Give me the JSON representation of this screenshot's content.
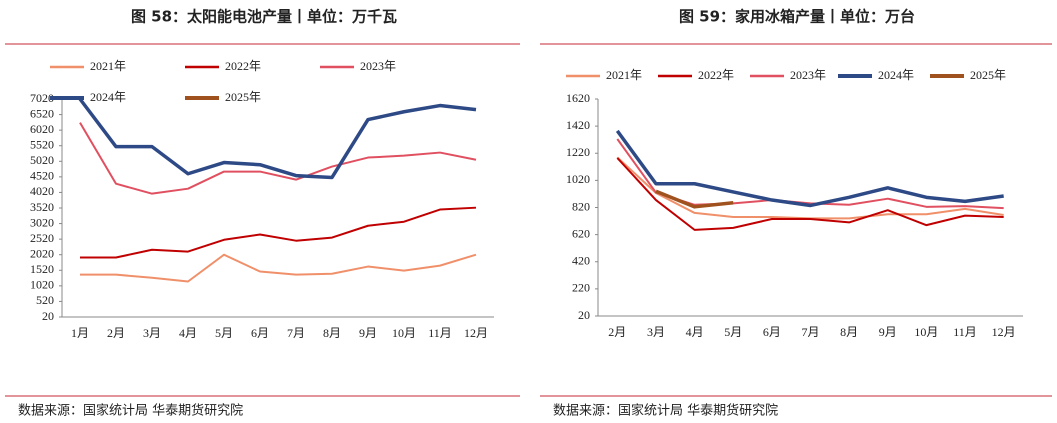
{
  "chart_data": [
    {
      "type": "line",
      "title": "图 58：太阳能电池产量丨单位：万千瓦",
      "categories": [
        "1月",
        "2月",
        "3月",
        "4月",
        "5月",
        "6月",
        "7月",
        "8月",
        "9月",
        "10月",
        "11月",
        "12月"
      ],
      "series": [
        {
          "name": "2021年",
          "color": "#f0906a",
          "values": [
            1380,
            1380,
            1280,
            1160,
            2020,
            1480,
            1380,
            1410,
            1640,
            1510,
            1670,
            2020
          ]
        },
        {
          "name": "2022年",
          "color": "#c00000",
          "values": [
            1930,
            1930,
            2180,
            2120,
            2500,
            2670,
            2470,
            2570,
            2950,
            3080,
            3470,
            3530
          ]
        },
        {
          "name": "2023年",
          "color": "#e05060",
          "values": [
            6260,
            4300,
            3980,
            4140,
            4690,
            4690,
            4430,
            4850,
            5140,
            5200,
            5300,
            5070
          ]
        },
        {
          "name": "2024年",
          "color": "#2e4a86",
          "values": [
            7020,
            5490,
            5490,
            4620,
            4980,
            4910,
            4560,
            4500,
            6360,
            6610,
            6810,
            6680
          ]
        },
        {
          "name": "2025年",
          "color": "#a0521e",
          "values": [
            null,
            null,
            null,
            null,
            null,
            null,
            null,
            null,
            null,
            null,
            null,
            null
          ]
        }
      ],
      "ylim": [
        20,
        7020
      ],
      "yticks": [
        20,
        520,
        1020,
        1520,
        2020,
        2520,
        3020,
        3520,
        4020,
        4520,
        5020,
        5520,
        6020,
        6520,
        7020
      ],
      "source": "数据来源：国家统计局 华泰期货研究院"
    },
    {
      "type": "line",
      "title": "图 59：家用冰箱产量丨单位：万台",
      "categories": [
        "2月",
        "3月",
        "4月",
        "5月",
        "6月",
        "7月",
        "8月",
        "9月",
        "10月",
        "11月",
        "12月"
      ],
      "series": [
        {
          "name": "2021年",
          "color": "#f0906a",
          "values": [
            1190,
            927,
            780,
            750,
            750,
            740,
            740,
            770,
            770,
            810,
            765
          ]
        },
        {
          "name": "2022年",
          "color": "#c00000",
          "values": [
            1185,
            875,
            655,
            670,
            735,
            735,
            710,
            800,
            690,
            760,
            750
          ]
        },
        {
          "name": "2023年",
          "color": "#e05060",
          "values": [
            1325,
            930,
            840,
            850,
            875,
            850,
            840,
            885,
            825,
            830,
            815
          ]
        },
        {
          "name": "2024年",
          "color": "#2e4a86",
          "values": [
            1385,
            995,
            995,
            935,
            875,
            835,
            895,
            965,
            895,
            865,
            905
          ]
        },
        {
          "name": "2025年",
          "color": "#a0521e",
          "values": [
            null,
            940,
            825,
            855,
            null,
            null,
            null,
            null,
            null,
            null,
            null
          ]
        }
      ],
      "ylim": [
        20,
        1620
      ],
      "yticks": [
        20,
        220,
        420,
        620,
        820,
        1020,
        1220,
        1420,
        1620
      ],
      "source": "数据来源：国家统计局 华泰期货研究院"
    }
  ]
}
